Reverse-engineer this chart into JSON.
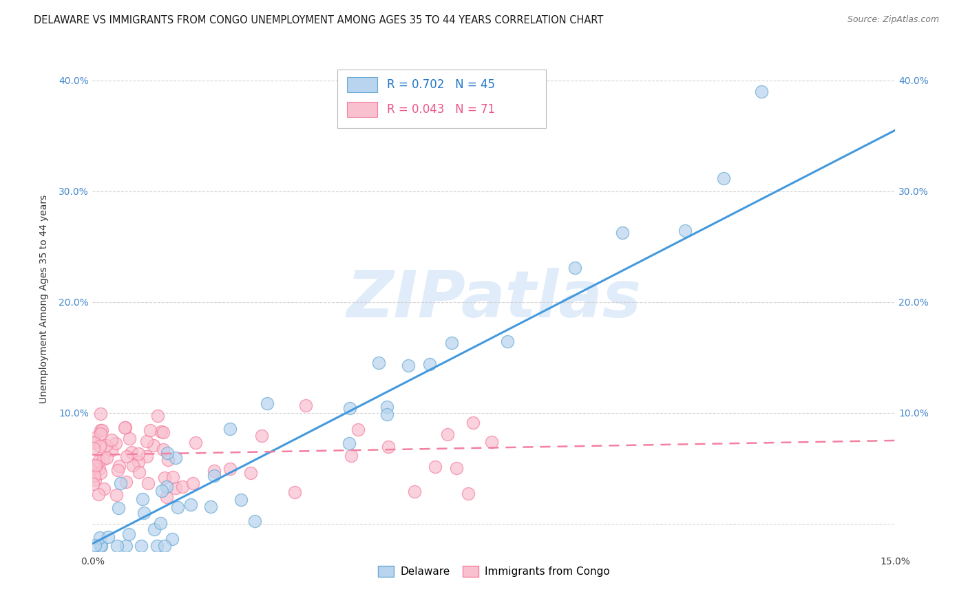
{
  "title": "DELAWARE VS IMMIGRANTS FROM CONGO UNEMPLOYMENT AMONG AGES 35 TO 44 YEARS CORRELATION CHART",
  "source": "Source: ZipAtlas.com",
  "ylabel": "Unemployment Among Ages 35 to 44 years",
  "xlim": [
    0.0,
    0.15
  ],
  "ylim": [
    -0.025,
    0.43
  ],
  "xticks": [
    0.0,
    0.03,
    0.06,
    0.09,
    0.12,
    0.15
  ],
  "xtick_labels": [
    "0.0%",
    "",
    "",
    "",
    "",
    "15.0%"
  ],
  "yticks": [
    0.0,
    0.1,
    0.2,
    0.3,
    0.4
  ],
  "ytick_labels": [
    "",
    "10.0%",
    "20.0%",
    "30.0%",
    "40.0%"
  ],
  "watermark": "ZIPatlas",
  "background_color": "#ffffff",
  "grid_color": "#cccccc",
  "delaware_color": "#b8d4ee",
  "delaware_edge_color": "#6aaad4",
  "congo_color": "#f9c0cf",
  "congo_edge_color": "#f47fa0",
  "delaware_line_color": "#4499dd",
  "congo_line_color": "#f47fa0",
  "R_delaware": 0.702,
  "N_delaware": 45,
  "R_congo": 0.043,
  "N_congo": 71,
  "del_line_x0": 0.0,
  "del_line_y0": -0.018,
  "del_line_x1": 0.15,
  "del_line_y1": 0.355,
  "con_line_x0": 0.0,
  "con_line_y0": 0.062,
  "con_line_x1": 0.15,
  "con_line_y1": 0.075,
  "title_fontsize": 10.5,
  "axis_fontsize": 10,
  "tick_fontsize": 10
}
